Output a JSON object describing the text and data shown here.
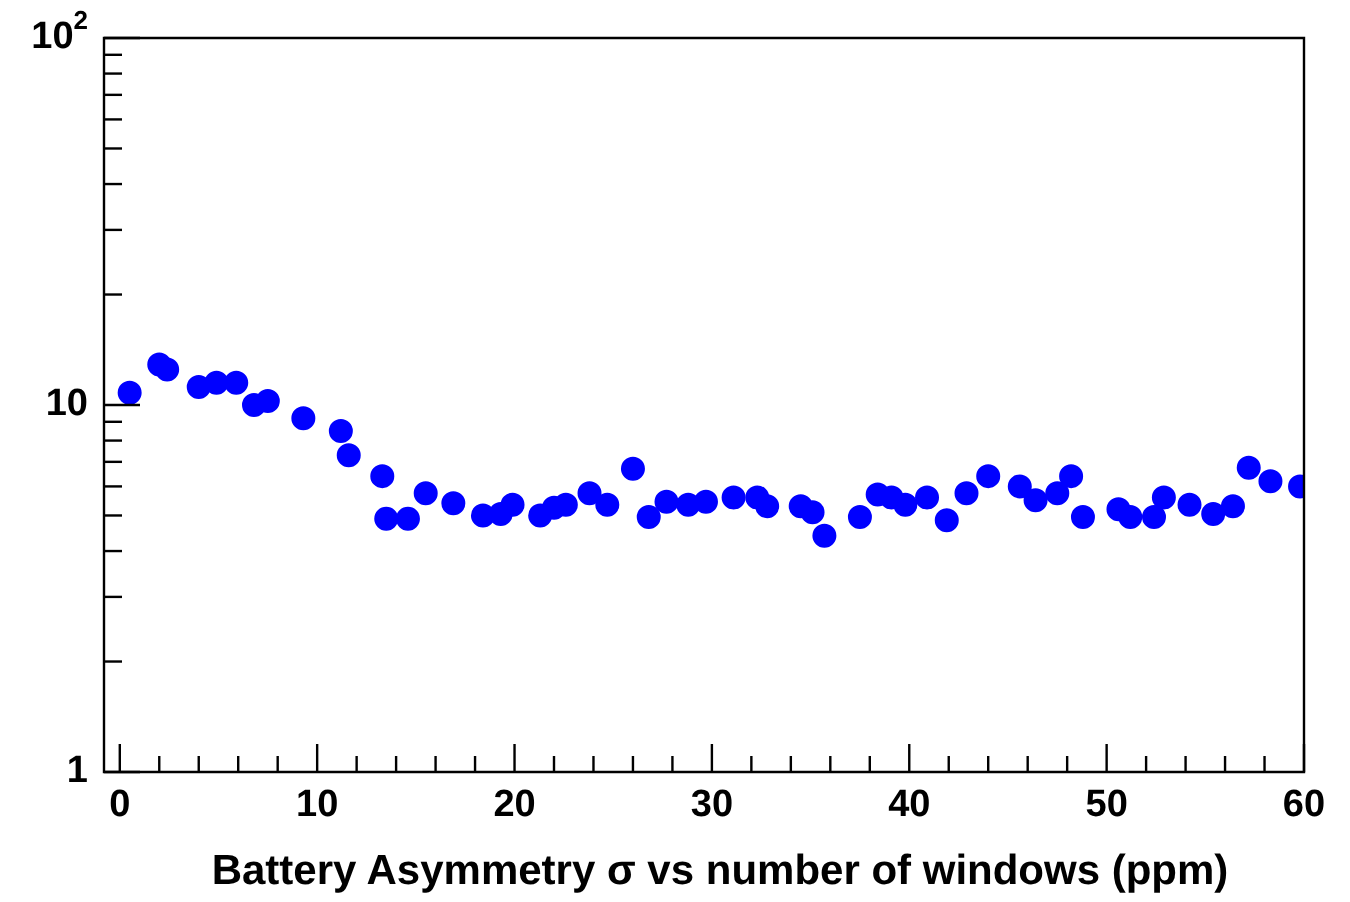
{
  "chart_data": {
    "type": "scatter",
    "xlabel": "Battery Asymmetry σ vs number of windows (ppm)",
    "x": [
      0.5,
      2.0,
      2.4,
      4.0,
      4.9,
      5.9,
      6.8,
      7.5,
      9.3,
      11.2,
      11.6,
      13.3,
      13.5,
      14.6,
      15.5,
      16.9,
      18.4,
      19.3,
      19.9,
      21.3,
      22.0,
      22.6,
      23.8,
      24.7,
      26.0,
      26.8,
      27.7,
      28.8,
      29.7,
      31.1,
      32.3,
      32.8,
      34.5,
      35.1,
      35.7,
      37.5,
      38.4,
      39.1,
      39.8,
      40.9,
      41.9,
      42.9,
      44.0,
      45.6,
      46.4,
      47.5,
      48.2,
      48.8,
      50.6,
      51.2,
      52.4,
      52.9,
      54.2,
      55.4,
      56.4,
      57.2,
      58.3,
      59.8
    ],
    "series": [
      {
        "color": "#0000ff",
        "values": [
          10.8,
          12.9,
          12.5,
          11.2,
          11.5,
          11.5,
          10.0,
          10.25,
          9.2,
          8.5,
          7.3,
          6.4,
          4.9,
          4.9,
          5.75,
          5.4,
          5.0,
          5.05,
          5.35,
          5.0,
          5.25,
          5.35,
          5.75,
          5.35,
          6.7,
          4.95,
          5.45,
          5.35,
          5.45,
          5.6,
          5.6,
          5.3,
          5.3,
          5.1,
          4.4,
          4.95,
          5.7,
          5.6,
          5.35,
          5.6,
          4.85,
          5.75,
          6.4,
          6.0,
          5.5,
          5.75,
          6.4,
          4.95,
          5.2,
          4.95,
          4.95,
          5.6,
          5.35,
          5.05,
          5.3,
          6.75,
          6.2,
          6.0
        ]
      }
    ],
    "log": "y",
    "marker": "circle",
    "xlim": [
      -0.8,
      60
    ],
    "xticks": [
      0,
      {
        "value": 2,
        "label": null
      },
      {
        "value": 4,
        "label": null
      },
      {
        "value": 6,
        "label": null
      },
      {
        "value": 8,
        "label": null
      },
      10,
      {
        "value": 12,
        "label": null
      },
      {
        "value": 14,
        "label": null
      },
      {
        "value": 16,
        "label": null
      },
      {
        "value": 18,
        "label": null
      },
      20,
      {
        "value": 22,
        "label": null
      },
      {
        "value": 24,
        "label": null
      },
      {
        "value": 26,
        "label": null
      },
      {
        "value": 28,
        "label": null
      },
      30,
      {
        "value": 32,
        "label": null
      },
      {
        "value": 34,
        "label": null
      },
      {
        "value": 36,
        "label": null
      },
      {
        "value": 38,
        "label": null
      },
      40,
      {
        "value": 42,
        "label": null
      },
      {
        "value": 44,
        "label": null
      },
      {
        "value": 46,
        "label": null
      },
      {
        "value": 48,
        "label": null
      },
      50,
      {
        "value": 52,
        "label": null
      },
      {
        "value": 54,
        "label": null
      },
      {
        "value": 56,
        "label": null
      },
      {
        "value": 58,
        "label": null
      },
      60
    ],
    "ylim": [
      1,
      100
    ],
    "yticks": [
      1,
      {
        "value": 2,
        "label": null
      },
      {
        "value": 3,
        "label": null
      },
      {
        "value": 4,
        "label": null
      },
      {
        "value": 5,
        "label": null
      },
      {
        "value": 6,
        "label": null
      },
      {
        "value": 7,
        "label": null
      },
      {
        "value": 8,
        "label": null
      },
      {
        "value": 9,
        "label": null
      },
      10,
      {
        "value": 20,
        "label": null
      },
      {
        "value": 30,
        "label": null
      },
      {
        "value": 40,
        "label": null
      },
      {
        "value": 50,
        "label": null
      },
      {
        "value": 60,
        "label": null
      },
      {
        "value": 70,
        "label": null
      },
      {
        "value": 80,
        "label": null
      },
      {
        "value": 90,
        "label": null
      },
      {
        "value": 100,
        "label": "10$^{2}$"
      }
    ]
  }
}
